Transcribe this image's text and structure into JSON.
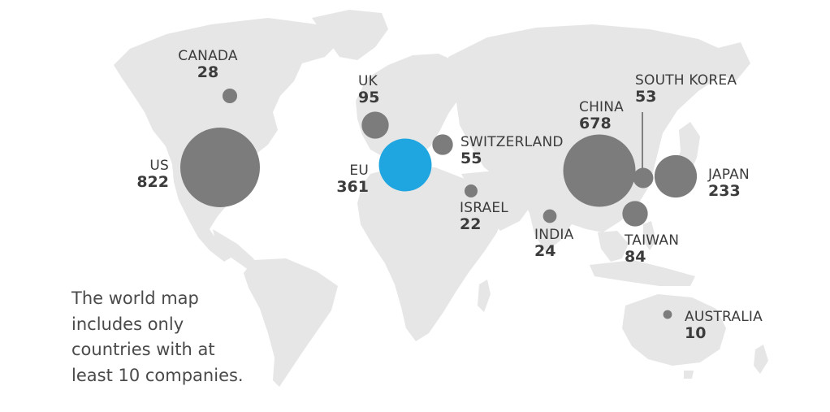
{
  "map": {
    "land_color": "#e6e6e6",
    "bubble_color": "#7c7c7c",
    "highlight_color": "#1fa6e0",
    "regions": [
      {
        "key": "canada",
        "name": "CANADA",
        "count": "28",
        "value": 28
      },
      {
        "key": "us",
        "name": "US",
        "count": "822",
        "value": 822
      },
      {
        "key": "uk",
        "name": "UK",
        "count": "95",
        "value": 95
      },
      {
        "key": "eu",
        "name": "EU",
        "count": "361",
        "value": 361,
        "highlight": true
      },
      {
        "key": "switzerland",
        "name": "SWITZERLAND",
        "count": "55",
        "value": 55
      },
      {
        "key": "israel",
        "name": "ISRAEL",
        "count": "22",
        "value": 22
      },
      {
        "key": "india",
        "name": "INDIA",
        "count": "24",
        "value": 24
      },
      {
        "key": "china",
        "name": "CHINA",
        "count": "678",
        "value": 678
      },
      {
        "key": "south_korea",
        "name": "SOUTH KOREA",
        "count": "53",
        "value": 53
      },
      {
        "key": "japan",
        "name": "JAPAN",
        "count": "233",
        "value": 233
      },
      {
        "key": "taiwan",
        "name": "TAIWAN",
        "count": "84",
        "value": 84
      },
      {
        "key": "australia",
        "name": "AUSTRALIA",
        "count": "10",
        "value": 10
      }
    ]
  },
  "note": "The world map\nincludes only\ncountries with at\nleast 10 companies."
}
